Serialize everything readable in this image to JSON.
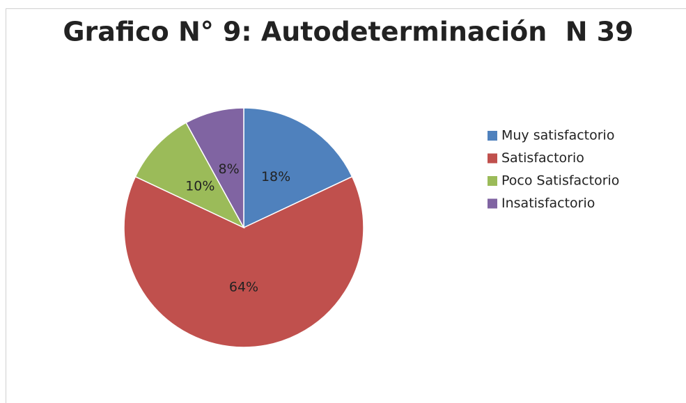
{
  "chart_data": {
    "type": "pie",
    "title": "Grafico N° 9: Autodeterminación  N 39",
    "categories": [
      "Muy satisfactorio",
      "Satisfactorio",
      "Poco Satisfactorio",
      "Insatisfactorio"
    ],
    "values": [
      18,
      64,
      10,
      8
    ],
    "value_labels": [
      "18%",
      "64%",
      "10%",
      "8%"
    ],
    "colors": [
      "#4f81bd",
      "#c0504d",
      "#9bbb59",
      "#8064a2"
    ],
    "legend": "right"
  }
}
